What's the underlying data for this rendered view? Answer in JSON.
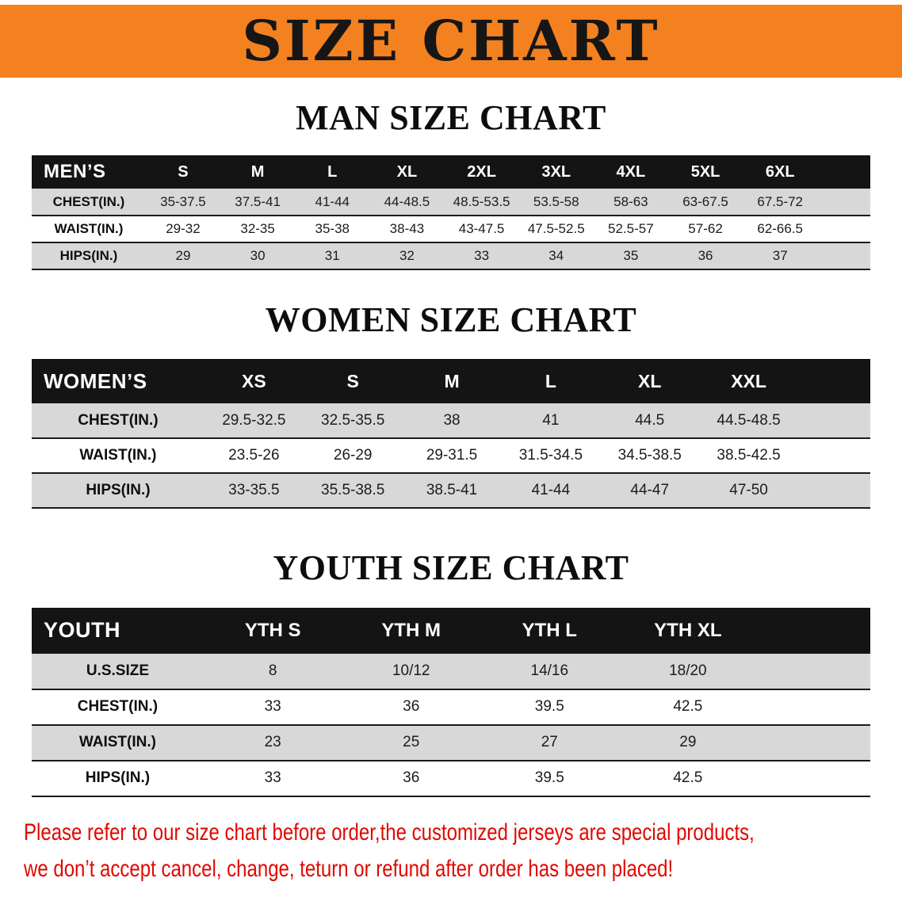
{
  "banner": {
    "title": "SIZE CHART",
    "bg_color": "#F48120"
  },
  "sections": [
    {
      "id": "men",
      "heading": "MAN SIZE CHART",
      "table": {
        "header": [
          "MEN’S",
          "S",
          "M",
          "L",
          "XL",
          "2XL",
          "3XL",
          "4XL",
          "5XL",
          "6XL"
        ],
        "rows": [
          {
            "label": "CHEST(IN.)",
            "values": [
              "35-37.5",
              "37.5-41",
              "41-44",
              "44-48.5",
              "48.5-53.5",
              "53.5-58",
              "58-63",
              "63-67.5",
              "67.5-72"
            ]
          },
          {
            "label": "WAIST(IN.)",
            "values": [
              "29-32",
              "32-35",
              "35-38",
              "38-43",
              "43-47.5",
              "47.5-52.5",
              "52.5-57",
              "57-62",
              "62-66.5"
            ]
          },
          {
            "label": "HIPS(IN.)",
            "values": [
              "29",
              "30",
              "31",
              "32",
              "33",
              "34",
              "35",
              "36",
              "37"
            ]
          }
        ]
      }
    },
    {
      "id": "women",
      "heading": "WOMEN SIZE CHART",
      "table": {
        "header": [
          "WOMEN’S",
          "XS",
          "S",
          "M",
          "L",
          "XL",
          "XXL"
        ],
        "rows": [
          {
            "label": "CHEST(IN.)",
            "values": [
              "29.5-32.5",
              "32.5-35.5",
              "38",
              "41",
              "44.5",
              "44.5-48.5"
            ]
          },
          {
            "label": "WAIST(IN.)",
            "values": [
              "23.5-26",
              "26-29",
              "29-31.5",
              "31.5-34.5",
              "34.5-38.5",
              "38.5-42.5"
            ]
          },
          {
            "label": "HIPS(IN.)",
            "values": [
              "33-35.5",
              "35.5-38.5",
              "38.5-41",
              "41-44",
              "44-47",
              "47-50"
            ]
          }
        ]
      }
    },
    {
      "id": "youth",
      "heading": "YOUTH SIZE CHART",
      "table": {
        "header": [
          "YOUTH",
          "YTH S",
          "YTH M",
          "YTH L",
          "YTH XL"
        ],
        "rows": [
          {
            "label": "U.S.SIZE",
            "values": [
              "8",
              "10/12",
              "14/16",
              "18/20"
            ]
          },
          {
            "label": "CHEST(IN.)",
            "values": [
              "33",
              "36",
              "39.5",
              "42.5"
            ]
          },
          {
            "label": "WAIST(IN.)",
            "values": [
              "23",
              "25",
              "27",
              "29"
            ]
          },
          {
            "label": "HIPS(IN.)",
            "values": [
              "33",
              "36",
              "39.5",
              "42.5"
            ]
          }
        ]
      }
    }
  ],
  "disclaimer": {
    "color": "#e00800",
    "lines": [
      "Please refer to our size chart before order,the customized jerseys are special products,",
      "we don’t accept cancel, change, teturn or refund after order has been placed!"
    ]
  }
}
